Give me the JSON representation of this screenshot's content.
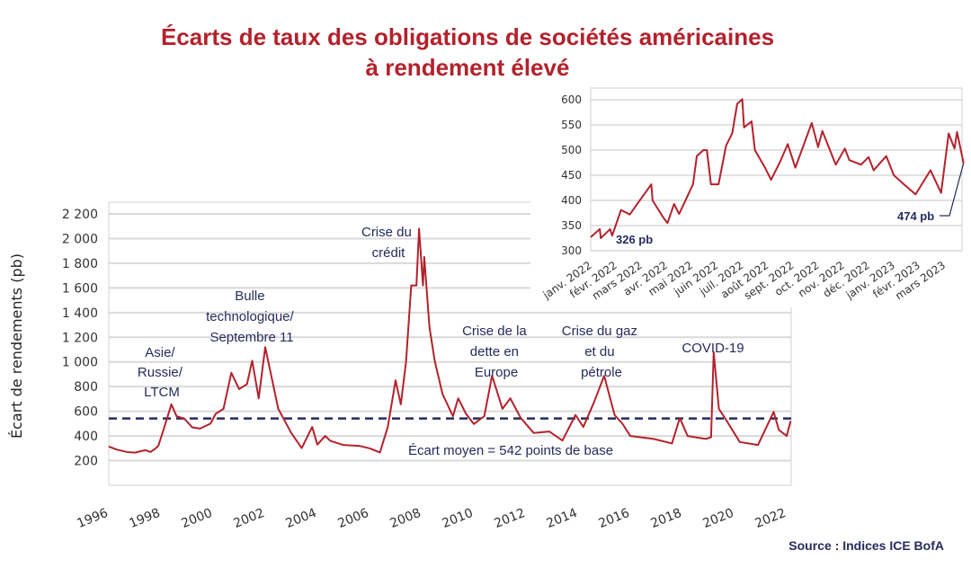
{
  "colors": {
    "title": "#b3222c",
    "series": "#b3222c",
    "annotation": "#262b5c",
    "grid": "#d9d9d9"
  },
  "title_lines": [
    "Écarts de taux des obligations de sociétés américaines",
    "à rendement élevé"
  ],
  "source": "Source : Indices ICE BofA",
  "chart_data": [
    {
      "type": "line",
      "ylabel": "Écart de rendements (pb)",
      "xlabel": "",
      "ylim": [
        0,
        2200
      ],
      "xlim": [
        1996,
        2022.2
      ],
      "grid": true,
      "yticks": [
        200,
        400,
        600,
        800,
        1000,
        1200,
        1400,
        1600,
        1800,
        2000,
        2200
      ],
      "ytick_labels": [
        "200",
        "400",
        "600",
        "800",
        "1 000",
        "1 200",
        "1 400",
        "1 600",
        "1 800",
        "2 000",
        "2 200"
      ],
      "xticks": [
        1996,
        1998,
        2000,
        2002,
        2004,
        2006,
        2008,
        2010,
        2012,
        2014,
        2016,
        2018,
        2020,
        2022
      ],
      "xtick_labels": [
        "1996",
        "1998",
        "2000",
        "2002",
        "2004",
        "2006",
        "2008",
        "2010",
        "2012",
        "2014",
        "2016",
        "2018",
        "2020",
        "2022"
      ],
      "series": [
        {
          "x": [
            1996.0,
            1996.3,
            1996.7,
            1997.0,
            1997.4,
            1997.6,
            1997.8,
            1997.9,
            1998.1,
            1998.4,
            1998.6,
            1998.9,
            1999.2,
            1999.5,
            1999.9,
            2000.1,
            2000.4,
            2000.7,
            2001.0,
            2001.3,
            2001.5,
            2001.75,
            2002.0,
            2002.5,
            2003.0,
            2003.4,
            2003.8,
            2004.0,
            2004.3,
            2004.5,
            2005.0,
            2005.6,
            2006.0,
            2006.4,
            2006.7,
            2007.0,
            2007.2,
            2007.4,
            2007.6,
            2007.8,
            2007.9,
            2008.05,
            2008.1,
            2008.3,
            2008.5,
            2008.8,
            2009.2,
            2009.4,
            2009.7,
            2010.0,
            2010.4,
            2010.7,
            2011.1,
            2011.4,
            2011.8,
            2012.3,
            2012.9,
            2013.4,
            2013.9,
            2014.2,
            2014.6,
            2015.0,
            2015.4,
            2015.7,
            2016.0,
            2016.9,
            2017.6,
            2017.9,
            2018.2,
            2018.9,
            2019.1,
            2019.2,
            2019.4,
            2019.7,
            2020.2,
            2020.9,
            2021.5,
            2021.7,
            2022.0,
            2022.15
          ],
          "y": [
            315,
            290,
            270,
            265,
            285,
            270,
            300,
            320,
            450,
            656,
            560,
            540,
            470,
            460,
            500,
            580,
            620,
            912,
            780,
            820,
            1010,
            705,
            1120,
            620,
            424,
            302,
            473,
            330,
            400,
            360,
            327,
            320,
            300,
            266,
            473,
            851,
            656,
            1000,
            1620,
            1620,
            2080,
            1620,
            1850,
            1280,
            1010,
            740,
            560,
            705,
            580,
            497,
            560,
            888,
            620,
            705,
            546,
            424,
            436,
            363,
            570,
            473,
            668,
            888,
            570,
            500,
            400,
            376,
            339,
            546,
            400,
            376,
            390,
            1080,
            620,
            522,
            351,
            327,
            595,
            449,
            400,
            522
          ]
        }
      ],
      "reference_line": {
        "value": 542,
        "label": "Écart moyen = 542 points de base",
        "style": "dashed"
      },
      "annotations": [
        {
          "lines": [
            "Asie/",
            "Russie/",
            "LTCM"
          ]
        },
        {
          "lines": [
            "Bulle",
            "technologique/",
            "Septembre 11"
          ]
        },
        {
          "lines": [
            "Crise du",
            "crédit"
          ]
        },
        {
          "lines": [
            "Crise de la",
            "dette en",
            "Europe"
          ]
        },
        {
          "lines": [
            "Crise du gaz",
            "et du",
            "pétrole"
          ]
        },
        {
          "lines": [
            "COVID-19"
          ]
        }
      ]
    },
    {
      "type": "line",
      "ylim": [
        300,
        600
      ],
      "yticks": [
        300,
        350,
        400,
        450,
        500,
        550,
        600
      ],
      "ytick_labels": [
        "300",
        "350",
        "400",
        "450",
        "500",
        "550",
        "600"
      ],
      "xtick_labels": [
        "janv. 2022",
        "févr. 2022",
        "mars 2022",
        "avr. 2022",
        "mai 2022",
        "juin 2022",
        "juil. 2022",
        "août 2022",
        "sept. 2022",
        "oct. 2022",
        "nov. 2022",
        "déc. 2022",
        "janv. 2023",
        "févr. 2023",
        "mars 2023"
      ],
      "grid": true,
      "series": [
        {
          "x_month_index": [
            0,
            0.36,
            0.4,
            0.77,
            0.85,
            1.2,
            1.55,
            1.8,
            2.4,
            2.45,
            2.86,
            3.04,
            3.3,
            3.5,
            4.05,
            4.2,
            4.46,
            4.6,
            4.76,
            5.06,
            5.36,
            5.6,
            5.8,
            6.0,
            6.07,
            6.37,
            6.5,
            6.9,
            7.14,
            7.5,
            7.8,
            8.1,
            8.4,
            8.75,
            9.0,
            9.17,
            9.7,
            10.06,
            10.24,
            10.7,
            11.0,
            11.2,
            11.7,
            12.0,
            12.4,
            12.86,
            13.45,
            13.87,
            14.17,
            14.4,
            14.5,
            14.76
          ],
          "y": [
            327,
            343,
            325,
            343,
            330,
            381,
            372,
            390,
            432,
            400,
            367,
            355,
            393,
            373,
            432,
            488,
            500,
            500,
            432,
            432,
            509,
            533,
            592,
            601,
            545,
            557,
            500,
            465,
            441,
            477,
            512,
            465,
            506,
            554,
            506,
            538,
            471,
            503,
            480,
            471,
            486,
            460,
            488,
            450,
            432,
            412,
            460,
            415,
            533,
            503,
            536,
            474
          ]
        }
      ],
      "annotations": [
        {
          "text": "326 pb"
        },
        {
          "text": "474 pb"
        }
      ]
    }
  ]
}
